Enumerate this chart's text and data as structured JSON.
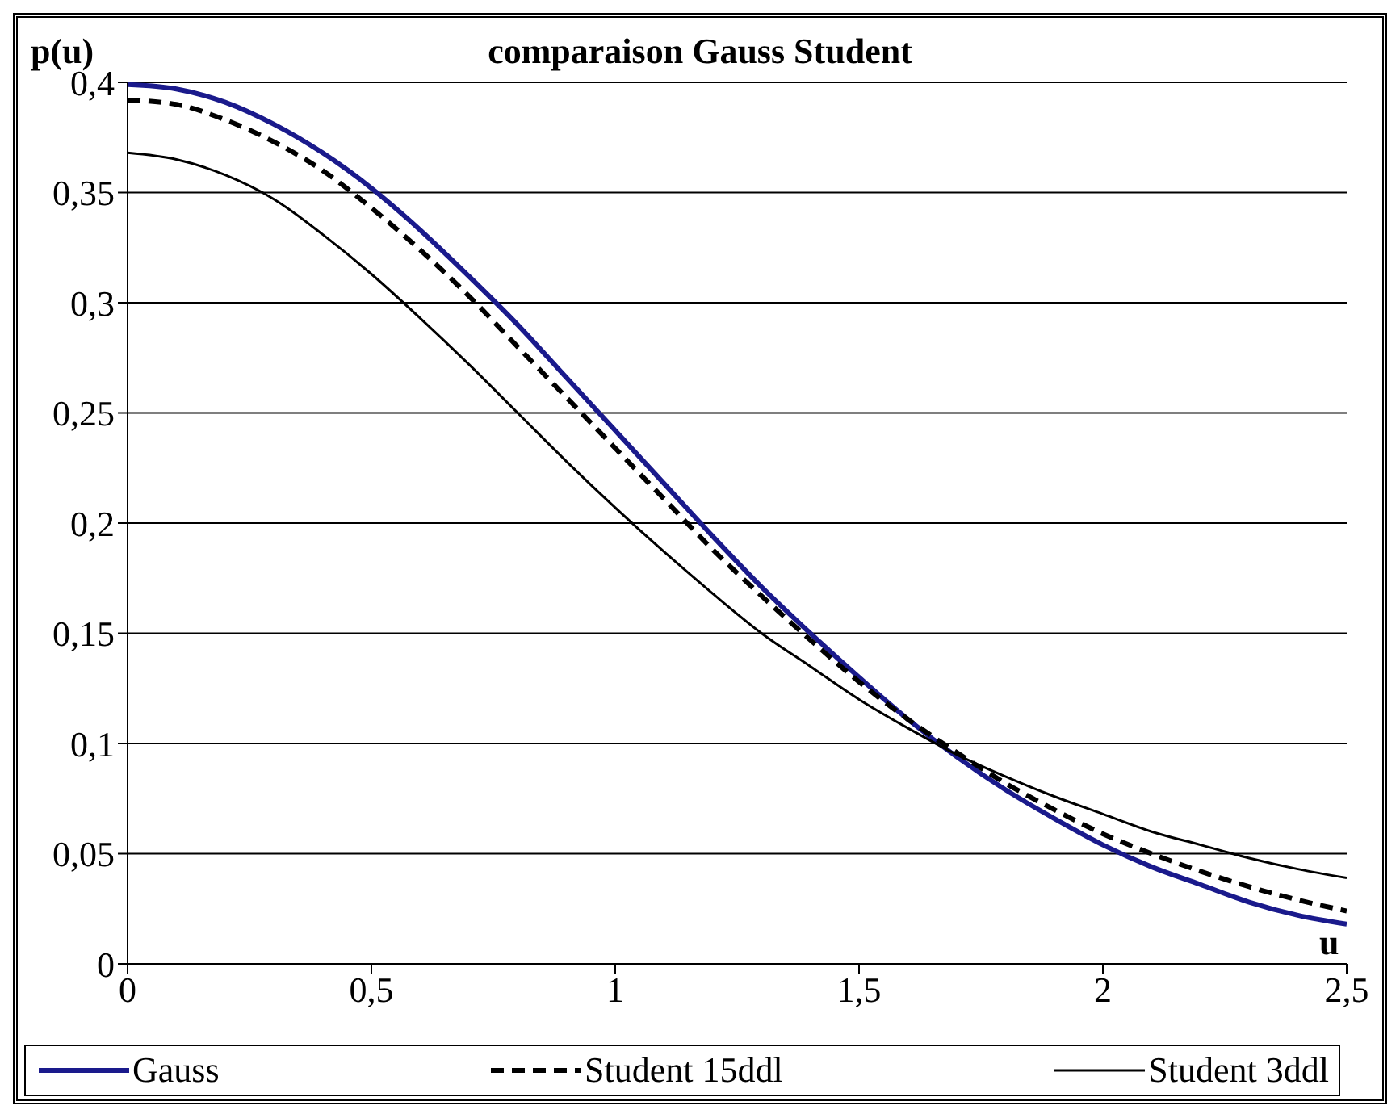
{
  "chart_data": {
    "type": "line",
    "title": "comparaison Gauss Student",
    "ylabel": "p(u)",
    "xlabel": "u",
    "x": [
      0,
      0.1,
      0.2,
      0.3,
      0.4,
      0.5,
      0.6,
      0.7,
      0.8,
      0.9,
      1,
      1.1,
      1.2,
      1.3,
      1.4,
      1.5,
      1.6,
      1.7,
      1.8,
      1.9,
      2,
      2.1,
      2.2,
      2.3,
      2.4,
      2.5
    ],
    "series": [
      {
        "name": "Gauss",
        "color": "#1a1a8c",
        "line_style": "solid",
        "values": [
          0.399,
          0.397,
          0.391,
          0.381,
          0.368,
          0.352,
          0.333,
          0.312,
          0.29,
          0.266,
          0.242,
          0.218,
          0.194,
          0.171,
          0.15,
          0.13,
          0.111,
          0.094,
          0.079,
          0.066,
          0.054,
          0.044,
          0.036,
          0.028,
          0.022,
          0.018
        ]
      },
      {
        "name": "Student 15ddl",
        "color": "#000000",
        "line_style": "dashed",
        "values": [
          0.392,
          0.39,
          0.383,
          0.373,
          0.36,
          0.343,
          0.324,
          0.303,
          0.28,
          0.257,
          0.234,
          0.211,
          0.188,
          0.167,
          0.147,
          0.128,
          0.111,
          0.096,
          0.082,
          0.07,
          0.059,
          0.05,
          0.042,
          0.035,
          0.029,
          0.024
        ]
      },
      {
        "name": "Student 3ddl",
        "color": "#000000",
        "line_style": "solid",
        "values": [
          0.368,
          0.365,
          0.358,
          0.347,
          0.331,
          0.313,
          0.293,
          0.272,
          0.25,
          0.228,
          0.207,
          0.187,
          0.168,
          0.15,
          0.135,
          0.12,
          0.107,
          0.095,
          0.085,
          0.076,
          0.068,
          0.06,
          0.054,
          0.048,
          0.043,
          0.039
        ]
      }
    ],
    "xlim": [
      0,
      2.5
    ],
    "xticks": [
      {
        "value": 0,
        "label": "0"
      },
      {
        "value": 0.5,
        "label": "0,5"
      },
      {
        "value": 1,
        "label": "1"
      },
      {
        "value": 1.5,
        "label": "1,5"
      },
      {
        "value": 2,
        "label": "2"
      },
      {
        "value": 2.5,
        "label": "2,5"
      }
    ],
    "ylim": [
      0,
      0.4
    ],
    "yticks": [
      {
        "value": 0,
        "label": "0"
      },
      {
        "value": 0.05,
        "label": "0,05"
      },
      {
        "value": 0.1,
        "label": "0,1"
      },
      {
        "value": 0.15,
        "label": "0,15"
      },
      {
        "value": 0.2,
        "label": "0,2"
      },
      {
        "value": 0.25,
        "label": "0,25"
      },
      {
        "value": 0.3,
        "label": "0,3"
      },
      {
        "value": 0.35,
        "label": "0,35"
      },
      {
        "value": 0.4,
        "label": "0,4"
      }
    ],
    "grid": "y",
    "legend": "bottom",
    "marker": "none"
  }
}
